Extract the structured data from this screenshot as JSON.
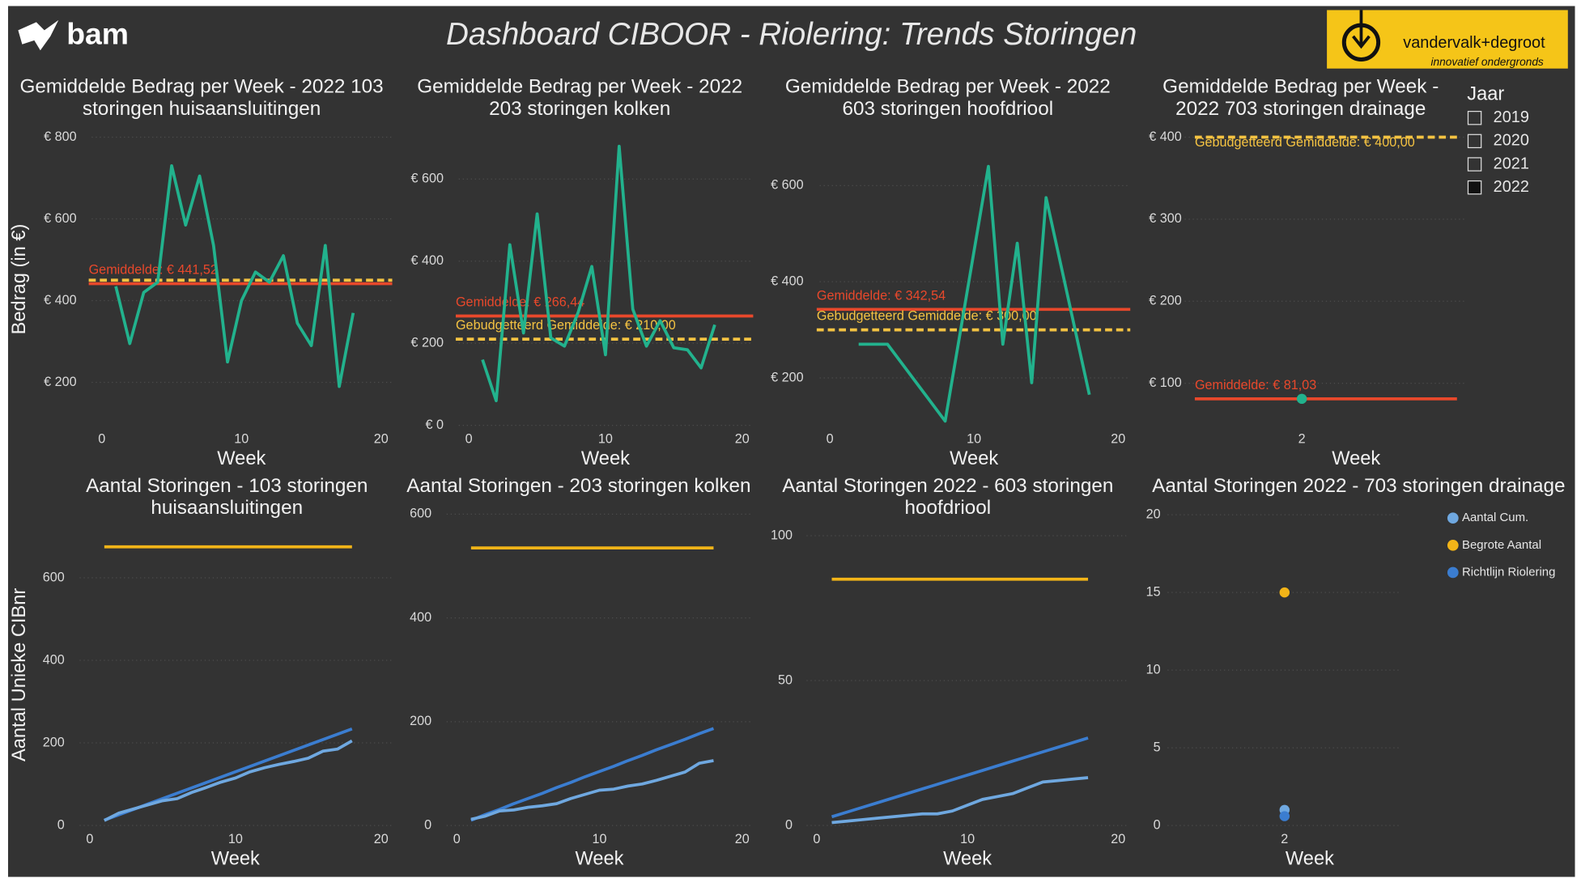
{
  "header": {
    "logo": "bam",
    "title": "Dashboard CIBOOR - Riolering: Trends Storingen",
    "brand": "vandervalk+degroot",
    "tagline": "innovatief ondergronds"
  },
  "slicer": {
    "title": "Jaar",
    "items": [
      "2019",
      "2020",
      "2021",
      "2022"
    ],
    "selected": [
      false,
      false,
      false,
      true
    ]
  },
  "chart_data": [
    {
      "type": "line",
      "title": "Gemiddelde Bedrag per Week - 2022 103 storingen huisaansluitingen",
      "xlabel": "Week",
      "ylabel": "Bedrag (in €)",
      "x": [
        1,
        2,
        3,
        4,
        5,
        6,
        7,
        8,
        9,
        10,
        11,
        12,
        13,
        14,
        15,
        16,
        17,
        18
      ],
      "xlim": [
        0,
        20
      ],
      "xticks": [
        0,
        10,
        20
      ],
      "ylim": [
        90,
        815
      ],
      "yticks": [
        {
          "value": 200,
          "label": "€ 200"
        },
        {
          "value": 400,
          "label": "€ 400"
        },
        {
          "value": 600,
          "label": "€ 600"
        },
        {
          "value": 800,
          "label": "€ 800"
        }
      ],
      "grid": true,
      "series": [
        {
          "color": "#22b28d",
          "values": [
            435,
            295,
            420,
            445,
            730,
            585,
            705,
            535,
            250,
            400,
            470,
            445,
            510,
            345,
            290,
            535,
            190,
            370
          ]
        }
      ],
      "reference_lines": [
        {
          "value": 450,
          "color": "#f5c342",
          "style": "dashed"
        },
        {
          "value": 441.52,
          "label": "Gemiddelde: € 441,52",
          "color": "#e8482b",
          "style": "solid"
        }
      ]
    },
    {
      "type": "line",
      "title": "Gemiddelde Bedrag per Week - 2022 203 storingen kolken",
      "xlabel": "Week",
      "x": [
        1,
        2,
        3,
        4,
        5,
        6,
        7,
        8,
        9,
        10,
        11,
        12,
        13,
        14,
        15,
        16,
        17,
        18
      ],
      "xlim": [
        0,
        20
      ],
      "xticks": [
        0,
        10,
        20
      ],
      "ylim": [
        0,
        690
      ],
      "yticks": [
        {
          "value": 0,
          "label": "€ 0"
        },
        {
          "value": 200,
          "label": "€ 200"
        },
        {
          "value": 400,
          "label": "€ 400"
        },
        {
          "value": 600,
          "label": "€ 600"
        }
      ],
      "grid": true,
      "series": [
        {
          "color": "#22b28d",
          "values": [
            160,
            60,
            440,
            225,
            515,
            213,
            193,
            275,
            387,
            172,
            680,
            283,
            193,
            255,
            189,
            184,
            140,
            245
          ]
        }
      ],
      "reference_lines": [
        {
          "value": 266.44,
          "label": "Gemiddelde: € 266,44",
          "color": "#e8482b",
          "style": "solid"
        },
        {
          "value": 210,
          "label": "Gebudgetteerd Gemiddelde: € 210,00",
          "color": "#f5c342",
          "style": "dashed"
        }
      ]
    },
    {
      "type": "line",
      "title": "Gemiddelde Bedrag per Week - 2022 603 storingen hoofdriool",
      "xlabel": "Week",
      "x": [
        2,
        4,
        8,
        11,
        12,
        13,
        14,
        15,
        18
      ],
      "xlim": [
        0,
        20
      ],
      "xticks": [
        0,
        10,
        20
      ],
      "ylim": [
        95,
        680
      ],
      "yticks": [
        {
          "value": 200,
          "label": "€ 200"
        },
        {
          "value": 400,
          "label": "€ 400"
        },
        {
          "value": 600,
          "label": "€ 600"
        }
      ],
      "grid": true,
      "series": [
        {
          "color": "#22b28d",
          "values": [
            270,
            270,
            110,
            640,
            270,
            480,
            190,
            575,
            165
          ]
        }
      ],
      "reference_lines": [
        {
          "value": 342.54,
          "label": "Gemiddelde: € 342,54",
          "color": "#e8482b",
          "style": "solid"
        },
        {
          "value": 300,
          "label": "Gebudgetteerd Gemiddelde: € 300,00",
          "color": "#f5c342",
          "style": "dashed"
        }
      ]
    },
    {
      "type": "line",
      "title": "Gemiddelde Bedrag per Week - 2022 703 storingen drainage",
      "xlabel": "Week",
      "x": [
        2
      ],
      "xlim": [
        1,
        3.45
      ],
      "xticks": [
        2
      ],
      "ylim": [
        45,
        405
      ],
      "yticks": [
        {
          "value": 100,
          "label": "€ 100"
        },
        {
          "value": 200,
          "label": "€ 200"
        },
        {
          "value": 300,
          "label": "€ 300"
        },
        {
          "value": 400,
          "label": "€ 400"
        }
      ],
      "grid": true,
      "series": [
        {
          "color": "#22b28d",
          "values": [
            81.03
          ]
        }
      ],
      "reference_lines": [
        {
          "value": 400,
          "label": "Gebudgetteerd Gemiddelde: € 400,00",
          "color": "#f5c342",
          "style": "dashed"
        },
        {
          "value": 81.03,
          "label": "Gemiddelde: € 81,03",
          "color": "#e8482b",
          "style": "solid"
        }
      ]
    },
    {
      "type": "line",
      "title": "Aantal Storingen - 103 storingen huisaansluitingen",
      "xlabel": "Week",
      "ylabel": "Aantal Unieke CIBnr",
      "x": [
        1,
        2,
        3,
        4,
        5,
        6,
        7,
        8,
        9,
        10,
        11,
        12,
        13,
        14,
        15,
        16,
        17,
        18
      ],
      "xlim": [
        0,
        20
      ],
      "xticks": [
        0,
        10,
        20
      ],
      "ylim": [
        0,
        730
      ],
      "yticks": [
        0,
        200,
        400,
        600
      ],
      "grid": true,
      "series": [
        {
          "color": "#f2b418",
          "values": [
            675,
            675,
            675,
            675,
            675,
            675,
            675,
            675,
            675,
            675,
            675,
            675,
            675,
            675,
            675,
            675,
            675,
            675
          ]
        },
        {
          "color": "#3b7dd0",
          "values": [
            13,
            26,
            39,
            52,
            65,
            78,
            91,
            104,
            117,
            130,
            143,
            156,
            169,
            182,
            195,
            208,
            221,
            234
          ]
        },
        {
          "color": "#6fa8e0",
          "values": [
            12,
            30,
            40,
            50,
            60,
            65,
            80,
            92,
            105,
            115,
            130,
            140,
            148,
            155,
            163,
            180,
            185,
            205
          ]
        }
      ]
    },
    {
      "type": "line",
      "title": "Aantal Storingen - 203 storingen kolken",
      "xlabel": "Week",
      "x": [
        1,
        2,
        3,
        4,
        5,
        6,
        7,
        8,
        9,
        10,
        11,
        12,
        13,
        14,
        15,
        16,
        17,
        18
      ],
      "xlim": [
        0,
        20
      ],
      "xticks": [
        0,
        10,
        20
      ],
      "ylim": [
        0,
        610
      ],
      "yticks": [
        0,
        200,
        400,
        600
      ],
      "grid": true,
      "series": [
        {
          "color": "#f2b418",
          "values": [
            535,
            535,
            535,
            535,
            535,
            535,
            535,
            535,
            535,
            535,
            535,
            535,
            535,
            535,
            535,
            535,
            535,
            535
          ]
        },
        {
          "color": "#3b7dd0",
          "values": [
            10,
            21,
            31,
            42,
            52,
            62,
            73,
            83,
            94,
            104,
            114,
            125,
            135,
            146,
            156,
            166,
            177,
            187
          ]
        },
        {
          "color": "#6fa8e0",
          "values": [
            12,
            18,
            28,
            30,
            35,
            38,
            42,
            52,
            60,
            68,
            70,
            76,
            80,
            87,
            95,
            103,
            120,
            125
          ]
        }
      ]
    },
    {
      "type": "line",
      "title": "Aantal Storingen 2022 - 603 storingen hoofdriool",
      "xlabel": "Week",
      "x": [
        1,
        2,
        3,
        4,
        5,
        6,
        7,
        8,
        9,
        10,
        11,
        12,
        13,
        14,
        15,
        16,
        17,
        18
      ],
      "xlim": [
        0,
        20
      ],
      "xticks": [
        0,
        10,
        20
      ],
      "ylim": [
        0,
        104
      ],
      "yticks": [
        0,
        50,
        100
      ],
      "grid": true,
      "series": [
        {
          "color": "#f2b418",
          "values": [
            85,
            85,
            85,
            85,
            85,
            85,
            85,
            85,
            85,
            85,
            85,
            85,
            85,
            85,
            85,
            85,
            85,
            85
          ]
        },
        {
          "color": "#3b7dd0",
          "values": [
            3,
            4.6,
            6.2,
            7.8,
            9.4,
            11,
            12.6,
            14.2,
            15.8,
            17.4,
            19,
            20.6,
            22.2,
            23.8,
            25.4,
            27,
            28.6,
            30.2
          ]
        },
        {
          "color": "#6fa8e0",
          "values": [
            1,
            1.5,
            2,
            2.5,
            3,
            3.5,
            4,
            4,
            5,
            7,
            9,
            10,
            11,
            13,
            15,
            15.5,
            16,
            16.5
          ]
        }
      ]
    },
    {
      "type": "scatter",
      "title": "Aantal Storingen 2022 - 703 storingen drainage",
      "xlabel": "Week",
      "x": [
        2
      ],
      "xlim": [
        1,
        3
      ],
      "xticks": [
        2
      ],
      "ylim": [
        0,
        20.5
      ],
      "yticks": [
        0,
        5,
        10,
        15,
        20
      ],
      "grid": true,
      "legend": "upper right",
      "series": [
        {
          "name": "Aantal Cum.",
          "color": "#6fa8e0",
          "values": [
            1
          ]
        },
        {
          "name": "Begrote Aantal",
          "color": "#f2b418",
          "values": [
            15
          ]
        },
        {
          "name": "Richtlijn Riolering",
          "color": "#3b7dd0",
          "values": [
            0.6
          ]
        }
      ]
    }
  ]
}
